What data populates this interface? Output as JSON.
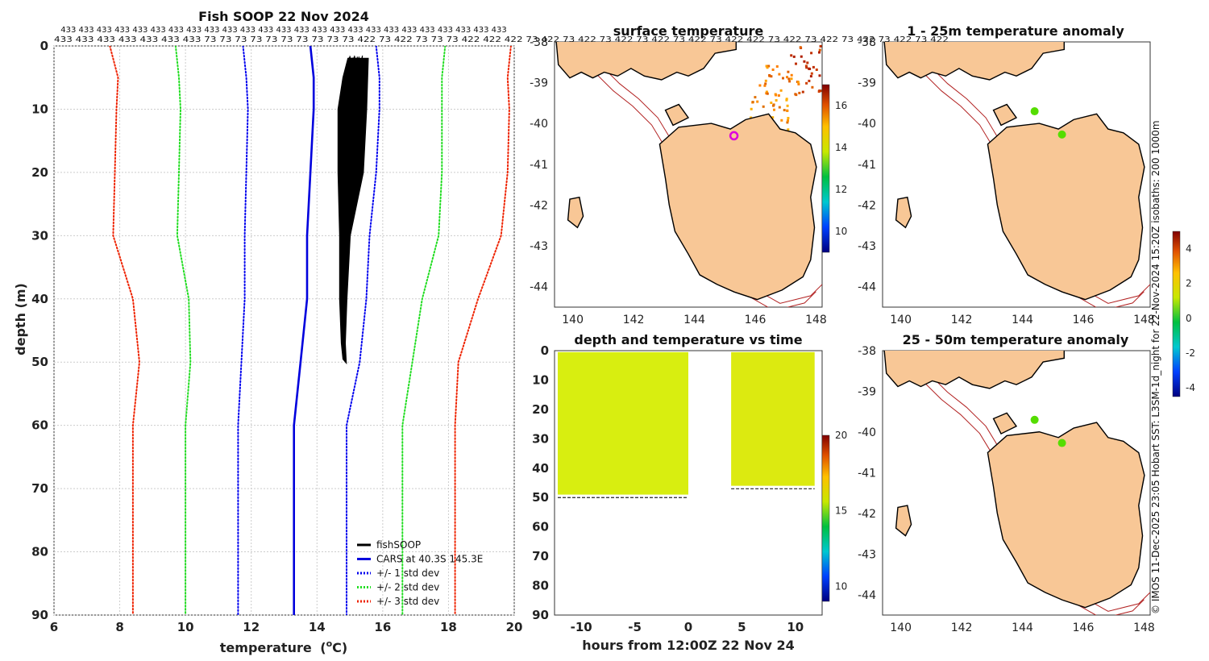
{
  "credit": "© IMOS 11-Dec-2025 23:05 Hobart SST: L3SM-1d_night for 22-Nov-2024 15:20Z isobaths: 200  1000m",
  "profile_counts": {
    "row1": "433 433 433 433 433 433 433 433 433 433 433 433 433 433 433 433 433 433 433 433 433 433 433 433 433",
    "row2": "433 433 433 433 433 433 433 73 73 73 73 73 73 73 73 73 73 422 73 422 73 73 73 422 422 422 73 422 73 422 73 422 73 422 73 422 73 422 422 73 422 73 422 73 422 73 422 73 422"
  },
  "colors": {
    "fishsoop": "#000000",
    "cars": "#0000dd",
    "std1": "#0000ee",
    "std2": "#22dd22",
    "std3": "#ee2200",
    "land": "#f8c796",
    "isobath": "#b22222",
    "marker": "#dd00dd"
  },
  "chart_data": [
    {
      "type": "line",
      "title": "Fish SOOP 22 Nov 2024",
      "xlabel": "temperature",
      "xlabel_unit": "(°C)",
      "xlabel_sup": "o",
      "xlabel_unit_suffix": "C)",
      "xlabel_unit_prefix": "(",
      "ylabel": "depth (m)",
      "xlim": [
        6,
        20
      ],
      "ylim": [
        0,
        90
      ],
      "xticks": [
        6,
        8,
        10,
        12,
        14,
        16,
        18,
        20
      ],
      "yticks": [
        0,
        10,
        20,
        30,
        40,
        50,
        60,
        70,
        80,
        90
      ],
      "legend": [
        {
          "label": "fishSOOP",
          "key": "fishsoop",
          "style": "solid"
        },
        {
          "label": "CARS at 40.3S 145.3E",
          "key": "cars",
          "style": "solid"
        },
        {
          "label": "+/- 1 std dev",
          "key": "std1",
          "style": "dotted"
        },
        {
          "label": "+/- 2 std dev",
          "key": "std2",
          "style": "dotted"
        },
        {
          "label": "+/- 3 std dev",
          "key": "std3",
          "style": "dotted"
        }
      ],
      "series": [
        {
          "name": "CARS at 40.3S 145.3E",
          "key": "cars",
          "style": "solid",
          "points": [
            [
              13.8,
              0
            ],
            [
              13.9,
              5
            ],
            [
              13.9,
              10
            ],
            [
              13.8,
              20
            ],
            [
              13.7,
              30
            ],
            [
              13.7,
              40
            ],
            [
              13.5,
              50
            ],
            [
              13.3,
              60
            ],
            [
              13.3,
              70
            ],
            [
              13.3,
              80
            ],
            [
              13.3,
              90
            ]
          ]
        },
        {
          "name": "-1 std dev",
          "key": "std1",
          "style": "dotted",
          "points": [
            [
              11.75,
              0
            ],
            [
              11.85,
              5
            ],
            [
              11.9,
              10
            ],
            [
              11.85,
              20
            ],
            [
              11.8,
              30
            ],
            [
              11.8,
              40
            ],
            [
              11.7,
              50
            ],
            [
              11.6,
              60
            ],
            [
              11.6,
              70
            ],
            [
              11.6,
              80
            ],
            [
              11.6,
              90
            ]
          ]
        },
        {
          "name": "+1 std dev",
          "key": "std1",
          "style": "dotted",
          "points": [
            [
              15.8,
              0
            ],
            [
              15.9,
              5
            ],
            [
              15.9,
              10
            ],
            [
              15.8,
              20
            ],
            [
              15.6,
              30
            ],
            [
              15.5,
              40
            ],
            [
              15.3,
              50
            ],
            [
              14.9,
              60
            ],
            [
              14.9,
              70
            ],
            [
              14.9,
              80
            ],
            [
              14.9,
              90
            ]
          ]
        },
        {
          "name": "-2 std dev",
          "key": "std2",
          "style": "dotted",
          "points": [
            [
              9.7,
              0
            ],
            [
              9.8,
              5
            ],
            [
              9.85,
              10
            ],
            [
              9.8,
              20
            ],
            [
              9.75,
              30
            ],
            [
              10.1,
              40
            ],
            [
              10.15,
              50
            ],
            [
              10.0,
              60
            ],
            [
              10.0,
              70
            ],
            [
              10.0,
              80
            ],
            [
              10.0,
              90
            ]
          ]
        },
        {
          "name": "+2 std dev",
          "key": "std2",
          "style": "dotted",
          "points": [
            [
              17.9,
              0
            ],
            [
              17.8,
              5
            ],
            [
              17.8,
              10
            ],
            [
              17.8,
              20
            ],
            [
              17.7,
              30
            ],
            [
              17.2,
              40
            ],
            [
              16.9,
              50
            ],
            [
              16.6,
              60
            ],
            [
              16.6,
              70
            ],
            [
              16.6,
              80
            ],
            [
              16.6,
              90
            ]
          ]
        },
        {
          "name": "-3 std dev",
          "key": "std3",
          "style": "dotted",
          "points": [
            [
              7.7,
              0
            ],
            [
              7.95,
              5
            ],
            [
              7.9,
              10
            ],
            [
              7.85,
              20
            ],
            [
              7.8,
              30
            ],
            [
              8.4,
              40
            ],
            [
              8.6,
              50
            ],
            [
              8.4,
              60
            ],
            [
              8.4,
              70
            ],
            [
              8.4,
              80
            ],
            [
              8.4,
              90
            ]
          ]
        },
        {
          "name": "+3 std dev",
          "key": "std3",
          "style": "dotted",
          "points": [
            [
              19.9,
              0
            ],
            [
              19.8,
              5
            ],
            [
              19.85,
              10
            ],
            [
              19.8,
              20
            ],
            [
              19.6,
              30
            ],
            [
              18.9,
              40
            ],
            [
              18.3,
              50
            ],
            [
              18.2,
              60
            ],
            [
              18.2,
              70
            ],
            [
              18.2,
              80
            ],
            [
              18.2,
              90
            ]
          ]
        }
      ],
      "fishsoop_envelope": {
        "min": [
          [
            14.95,
            2
          ],
          [
            14.8,
            5
          ],
          [
            14.65,
            10
          ],
          [
            14.65,
            20
          ],
          [
            14.7,
            30
          ],
          [
            14.7,
            40
          ],
          [
            14.75,
            47
          ]
        ],
        "max": [
          [
            15.55,
            2
          ],
          [
            15.5,
            10
          ],
          [
            15.4,
            20
          ],
          [
            15.0,
            30
          ],
          [
            14.9,
            40
          ],
          [
            14.85,
            47
          ]
        ],
        "max_depth": 50
      }
    },
    {
      "type": "heatmap",
      "title": "surface temperature",
      "xlim": [
        139.4,
        148.2
      ],
      "ylim": [
        -44.5,
        -38.0
      ],
      "xticks": [
        140,
        142,
        144,
        146,
        148
      ],
      "yticks": [
        -38,
        -39,
        -40,
        -41,
        -42,
        -43,
        -44
      ],
      "colorbar_range": [
        9,
        17
      ],
      "colorbar_ticks": [
        10,
        12,
        14,
        16
      ],
      "marker": {
        "lon": 145.3,
        "lat": -40.3
      }
    },
    {
      "type": "scatter",
      "title": "depth and temperature vs time",
      "xlabel": "hours from 12:00Z 22 Nov 24",
      "xlim": [
        -12.5,
        12.5
      ],
      "ylim": [
        0,
        90
      ],
      "xticks": [
        -10,
        -5,
        0,
        5,
        10
      ],
      "yticks": [
        0,
        10,
        20,
        30,
        40,
        50,
        60,
        70,
        80,
        90
      ],
      "colorbar_range": [
        9,
        20
      ],
      "colorbar_ticks": [
        10,
        15,
        20
      ],
      "segments": [
        {
          "t_start": -12.2,
          "t_end": 0.0,
          "max_depth": 50,
          "temp": 15.8
        },
        {
          "t_start": 4.0,
          "t_end": 11.8,
          "max_depth": 47,
          "temp": 16.3
        }
      ]
    },
    {
      "type": "scatter",
      "title": "1 - 25m temperature anomaly",
      "xlim": [
        139.4,
        148.2
      ],
      "ylim": [
        -44.5,
        -38.0
      ],
      "xticks": [
        140,
        142,
        144,
        146,
        148
      ],
      "yticks": [
        -38,
        -39,
        -40,
        -41,
        -42,
        -43,
        -44
      ],
      "points": [
        {
          "lon": 144.4,
          "lat": -39.7,
          "anomaly": 0.3
        },
        {
          "lon": 145.3,
          "lat": -40.27,
          "anomaly": 0.4
        }
      ]
    },
    {
      "type": "scatter",
      "title": "25 - 50m temperature anomaly",
      "xlim": [
        139.4,
        148.2
      ],
      "ylim": [
        -44.5,
        -38.0
      ],
      "xticks": [
        140,
        142,
        144,
        146,
        148
      ],
      "yticks": [
        -38,
        -39,
        -40,
        -41,
        -42,
        -43,
        -44
      ],
      "points": [
        {
          "lon": 144.4,
          "lat": -39.7,
          "anomaly": 0.3
        },
        {
          "lon": 145.3,
          "lat": -40.27,
          "anomaly": 0.4
        }
      ]
    }
  ],
  "anomaly_colorbar": {
    "range": [
      -4.5,
      5
    ],
    "ticks": [
      4,
      2,
      0,
      -2,
      -4
    ]
  }
}
